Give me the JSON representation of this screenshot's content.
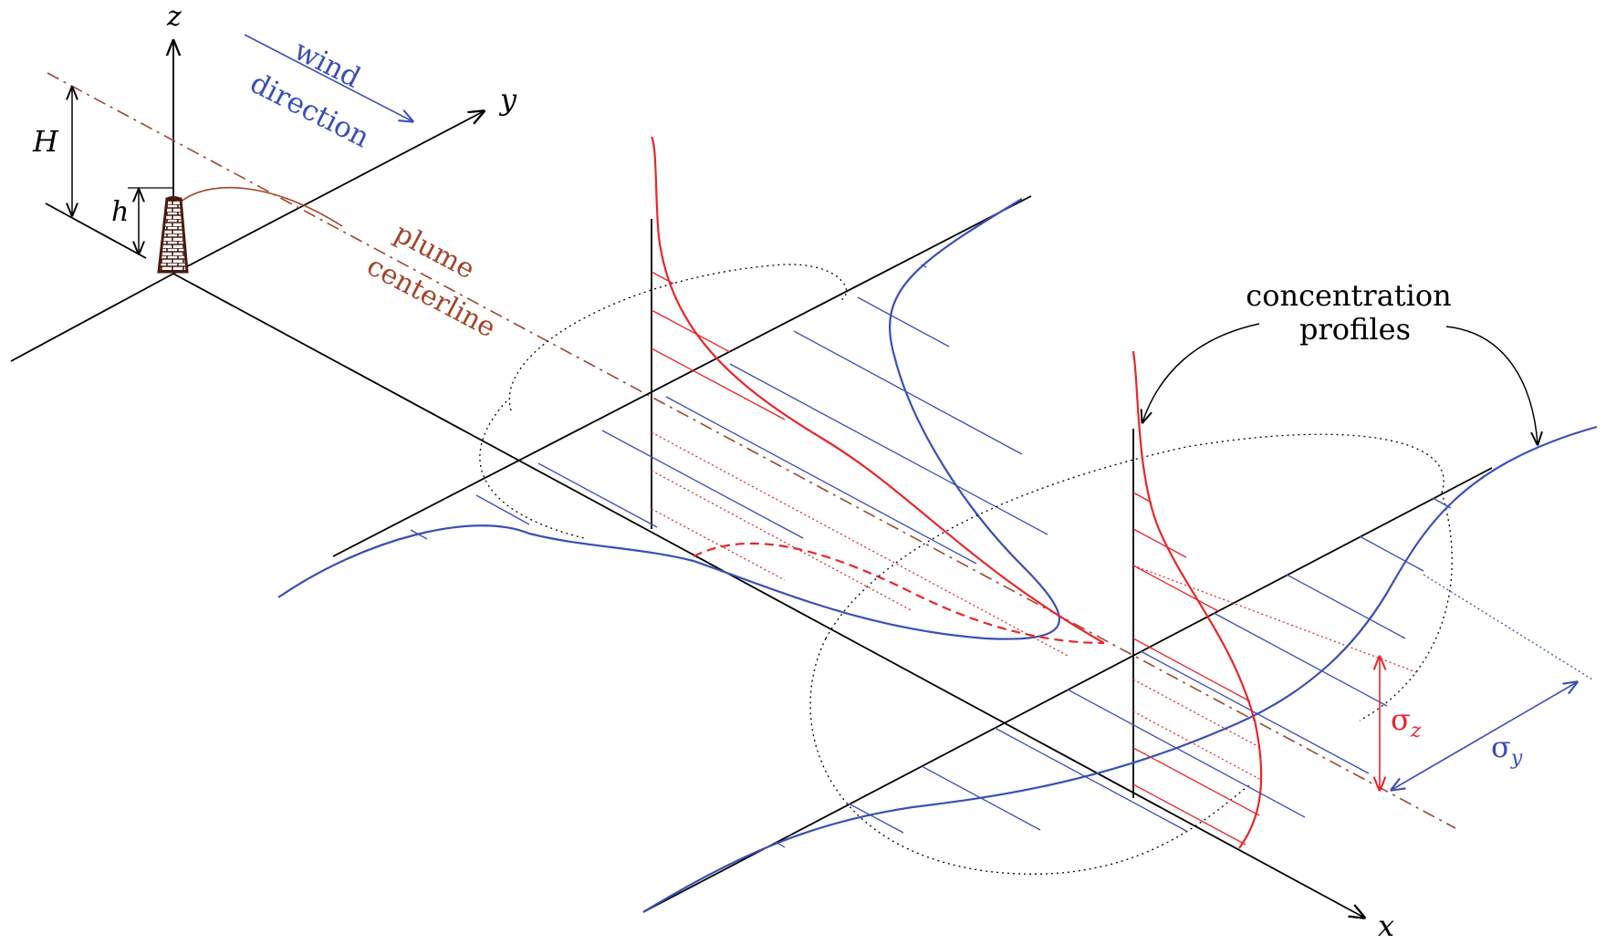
{
  "labels": {
    "z_axis": "z",
    "y_axis": "y",
    "x_axis": "x",
    "stack_eff_height": "H",
    "stack_height": "h",
    "wind_line1": "wind",
    "wind_line2": "direction",
    "plume_line1": "plume",
    "plume_line2": "centerline",
    "conc_line1": "concentration",
    "conc_line2": "profiles",
    "sigma_z_symbol": "σ",
    "sigma_z_sub": "z",
    "sigma_y_symbol": "σ",
    "sigma_y_sub": "y"
  },
  "colors": {
    "axes": "#000000",
    "horizontal_profile": "#3a4fb5",
    "vertical_profile": "#e8262b",
    "plume_centerline": "#a1452c",
    "wind_label": "#3a4fb5",
    "plume_label": "#a1452c",
    "sigma_z": "#e8262b",
    "sigma_y": "#3a4fb5",
    "stack": "#4a1a10"
  },
  "icons": {
    "stack": "chimney-icon"
  }
}
